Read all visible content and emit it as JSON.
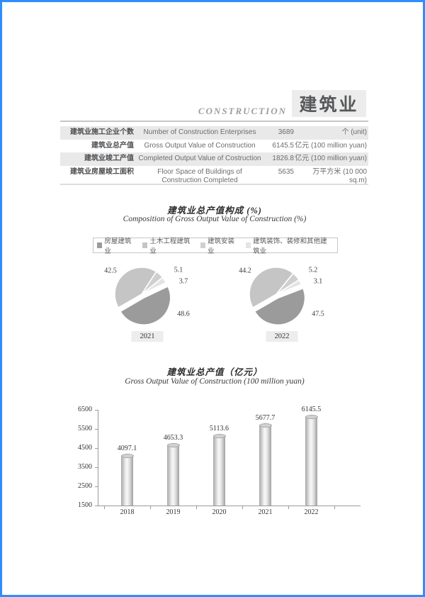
{
  "header": {
    "english": "CONSTRUCTION",
    "chinese": "建筑业"
  },
  "table": {
    "rows": [
      {
        "zh": "建筑业施工企业个数",
        "en": "Number of Construction Enterprises",
        "value": "3689",
        "unit": "个 (unit)"
      },
      {
        "zh": "建筑业总产值",
        "en": "Gross Output Value of Construction",
        "value": "6145.5",
        "unit": "亿元 (100 million yuan)"
      },
      {
        "zh": "建筑业竣工产值",
        "en": "Completed Output Value of Costruction",
        "value": "1826.8",
        "unit": "亿元 (100 million yuan)"
      },
      {
        "zh": "建筑业房屋竣工面积",
        "en": "Floor Space of Buildings of",
        "en2": "Construction Completed",
        "value": "5635",
        "unit": "万平方米 (10 000 sq.m)"
      }
    ]
  },
  "colors": {
    "page_border_blue": "#2f8eff",
    "header_box_bg": "#ececec",
    "table_stripe": "#e9e9e9",
    "year_label_bg": "#ededed"
  },
  "chart_data": [
    {
      "type": "pie",
      "title": "建筑业总产值构成 (%)",
      "subtitle": "Composition of Gross Output Value of Construction (%)",
      "legend": [
        "房屋建筑业",
        "土木工程建筑业",
        "建筑安装业",
        "建筑装饰、装修和其他建筑业"
      ],
      "colors": [
        "#9b9b9b",
        "#c5c5c5",
        "#cfcfcf",
        "#e4e4e4"
      ],
      "legend_position": "top",
      "pies": [
        {
          "year": "2021",
          "values": [
            48.6,
            42.5,
            5.1,
            3.7
          ]
        },
        {
          "year": "2022",
          "values": [
            47.5,
            44.2,
            5.2,
            3.1
          ]
        }
      ]
    },
    {
      "type": "bar",
      "title": "建筑业总产值（亿元）",
      "subtitle": "Gross Output Value of Construction (100 million yuan)",
      "categories": [
        "2018",
        "2019",
        "2020",
        "2021",
        "2022"
      ],
      "values": [
        4097.1,
        4653.3,
        5113.6,
        5677.7,
        6145.5
      ],
      "xlabel": "",
      "ylabel": "",
      "ylim": [
        1500,
        6500
      ],
      "yticks": [
        6500,
        5500,
        4500,
        3500,
        2500,
        1500
      ],
      "grid": false
    }
  ]
}
